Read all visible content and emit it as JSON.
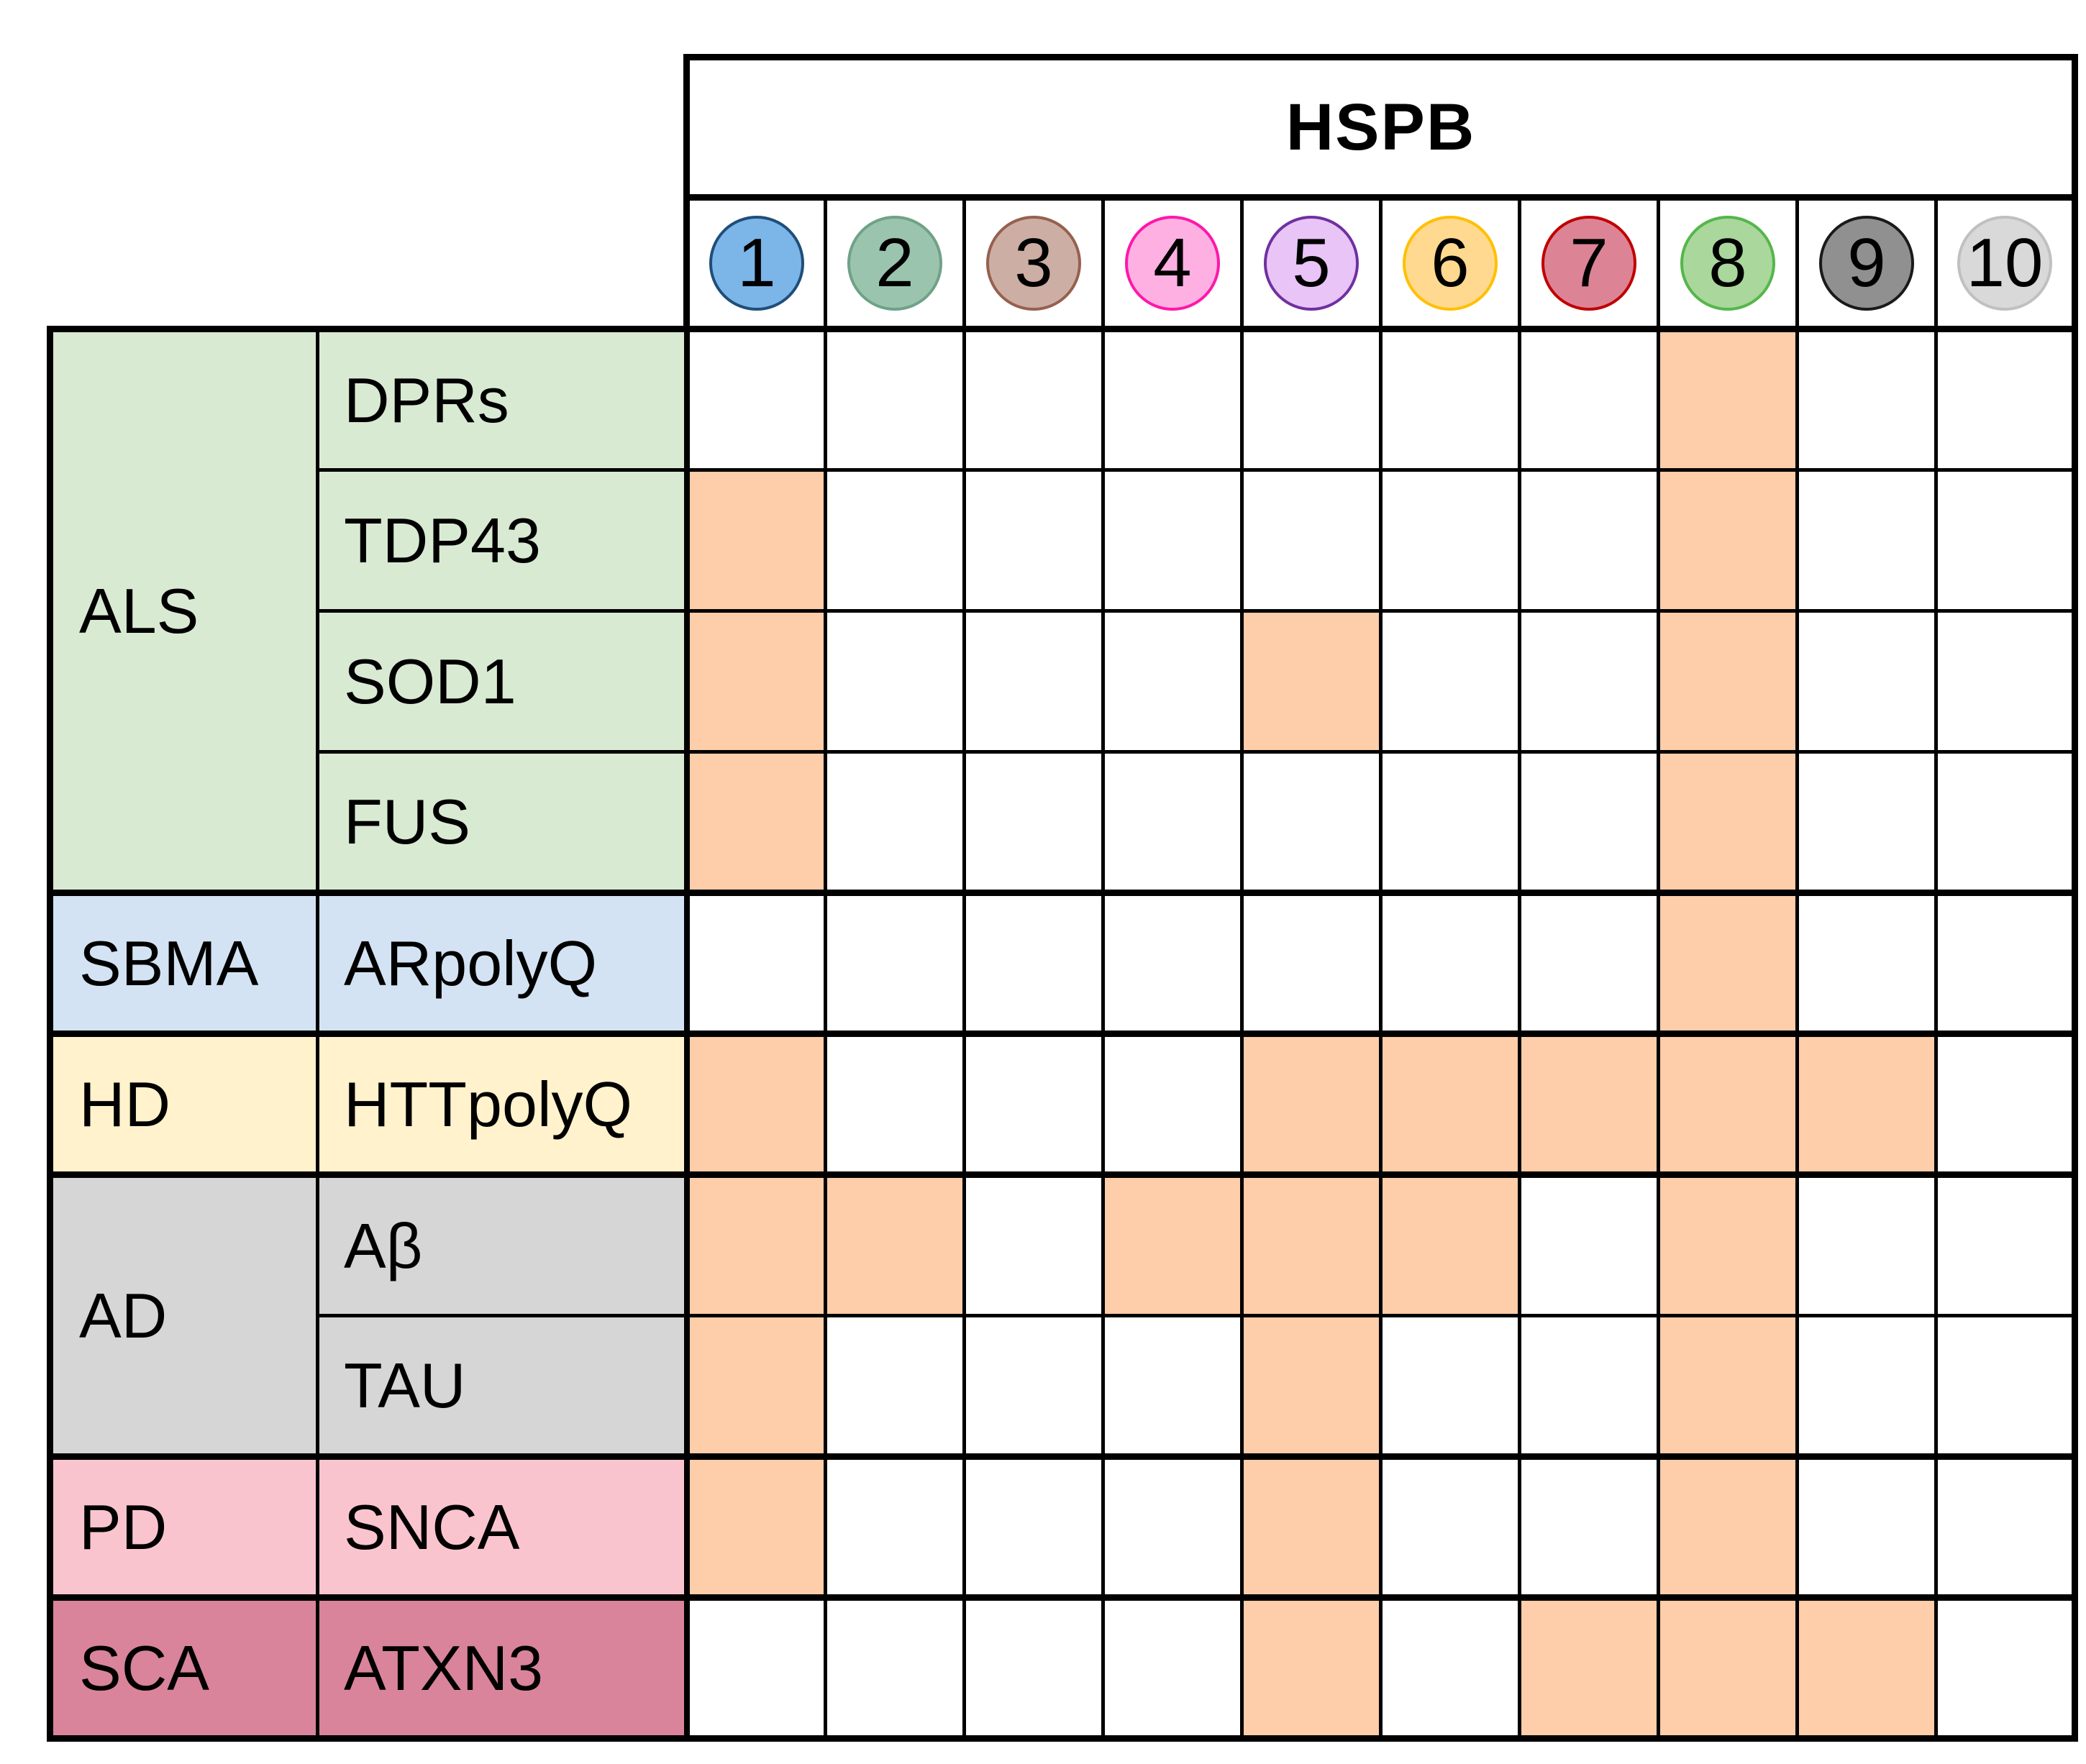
{
  "figure": {
    "title": "HSPB",
    "background": "#ffffff",
    "grid_line_color": "#000000",
    "hit_color": "#FECDA9"
  },
  "hspb_columns": [
    {
      "label": "1",
      "fill": "#7CB5E8",
      "border": "#1F4E79"
    },
    {
      "label": "2",
      "fill": "#9BC4AE",
      "border": "#6FA287"
    },
    {
      "label": "3",
      "fill": "#CCAEA4",
      "border": "#96604F"
    },
    {
      "label": "4",
      "fill": "#FFB0E3",
      "border": "#FF17A9"
    },
    {
      "label": "5",
      "fill": "#E9C4F7",
      "border": "#7030A0"
    },
    {
      "label": "6",
      "fill": "#FFD98F",
      "border": "#FFC000"
    },
    {
      "label": "7",
      "fill": "#DD8396",
      "border": "#C00000"
    },
    {
      "label": "8",
      "fill": "#A9D79C",
      "border": "#55B64A"
    },
    {
      "label": "9",
      "fill": "#909090",
      "border": "#1A1A1A"
    },
    {
      "label": "10",
      "fill": "#D9D9D9",
      "border": "#C0C0C0"
    }
  ],
  "groups": [
    {
      "disease": "ALS",
      "color": "#D9EAD3",
      "proteins": [
        "DPRs",
        "TDP43",
        "SOD1",
        "FUS"
      ]
    },
    {
      "disease": "SBMA",
      "color": "#D3E3F3",
      "proteins": [
        "ARpolyQ"
      ]
    },
    {
      "disease": "HD",
      "color": "#FFF2CC",
      "proteins": [
        "HTTpolyQ"
      ]
    },
    {
      "disease": "AD",
      "color": "#D6D6D6",
      "proteins": [
        "Aβ",
        "TAU"
      ]
    },
    {
      "disease": "PD",
      "color": "#FAC4CF",
      "proteins": [
        "SNCA"
      ]
    },
    {
      "disease": "SCA",
      "color": "#D9849B",
      "proteins": [
        "ATXN3"
      ]
    }
  ],
  "chart_data": {
    "type": "heatmap",
    "title": "HSPB",
    "columns": [
      "1",
      "2",
      "3",
      "4",
      "5",
      "6",
      "7",
      "8",
      "9",
      "10"
    ],
    "value_encoding": "filled (orange) cell = 1, empty cell = 0",
    "rows": [
      {
        "disease": "ALS",
        "protein": "DPRs",
        "hspb_hits": [
          8
        ],
        "values": [
          0,
          0,
          0,
          0,
          0,
          0,
          0,
          1,
          0,
          0
        ]
      },
      {
        "disease": "ALS",
        "protein": "TDP43",
        "hspb_hits": [
          1,
          8
        ],
        "values": [
          1,
          0,
          0,
          0,
          0,
          0,
          0,
          1,
          0,
          0
        ]
      },
      {
        "disease": "ALS",
        "protein": "SOD1",
        "hspb_hits": [
          1,
          5,
          8
        ],
        "values": [
          1,
          0,
          0,
          0,
          1,
          0,
          0,
          1,
          0,
          0
        ]
      },
      {
        "disease": "ALS",
        "protein": "FUS",
        "hspb_hits": [
          1,
          8
        ],
        "values": [
          1,
          0,
          0,
          0,
          0,
          0,
          0,
          1,
          0,
          0
        ]
      },
      {
        "disease": "SBMA",
        "protein": "ARpolyQ",
        "hspb_hits": [
          8
        ],
        "values": [
          0,
          0,
          0,
          0,
          0,
          0,
          0,
          1,
          0,
          0
        ]
      },
      {
        "disease": "HD",
        "protein": "HTTpolyQ",
        "hspb_hits": [
          1,
          5,
          6,
          7,
          8,
          9
        ],
        "values": [
          1,
          0,
          0,
          0,
          1,
          1,
          1,
          1,
          1,
          0
        ]
      },
      {
        "disease": "AD",
        "protein": "Aβ",
        "hspb_hits": [
          1,
          2,
          4,
          5,
          6,
          8
        ],
        "values": [
          1,
          1,
          0,
          1,
          1,
          1,
          0,
          1,
          0,
          0
        ]
      },
      {
        "disease": "AD",
        "protein": "TAU",
        "hspb_hits": [
          1,
          5,
          8
        ],
        "values": [
          1,
          0,
          0,
          0,
          1,
          0,
          0,
          1,
          0,
          0
        ]
      },
      {
        "disease": "PD",
        "protein": "SNCA",
        "hspb_hits": [
          1,
          5,
          8
        ],
        "values": [
          1,
          0,
          0,
          0,
          1,
          0,
          0,
          1,
          0,
          0
        ]
      },
      {
        "disease": "SCA",
        "protein": "ATXN3",
        "hspb_hits": [
          5,
          7,
          8,
          9
        ],
        "values": [
          0,
          0,
          0,
          0,
          1,
          0,
          1,
          1,
          1,
          0
        ]
      }
    ]
  }
}
